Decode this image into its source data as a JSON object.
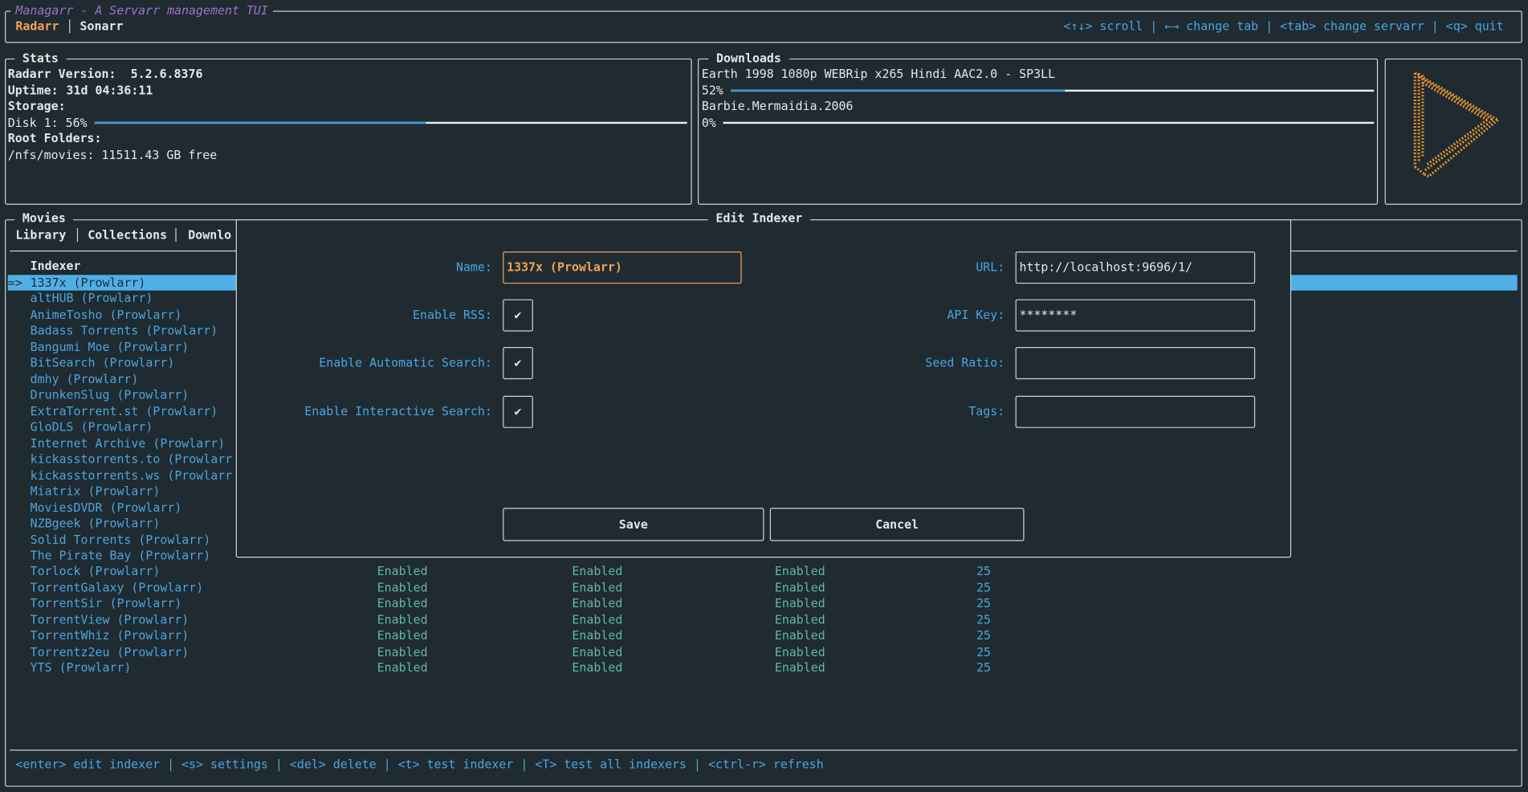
{
  "header": {
    "title": "Managarr - A Servarr management TUI",
    "tabs": [
      "Radarr",
      "Sonarr"
    ],
    "help": "<↑↓> scroll | ←→ change tab | <tab> change servarr | <q> quit"
  },
  "stats": {
    "title": "Stats",
    "version_label": "Radarr Version:",
    "version": "5.2.6.8376",
    "uptime_label": "Uptime:",
    "uptime": "31d 04:36:11",
    "storage_label": "Storage:",
    "disk_label": "Disk 1: 56%",
    "disk_progress": 56,
    "root_folders_label": "Root Folders:",
    "root_folder": "/nfs/movies: 11511.43 GB free"
  },
  "downloads": {
    "title": "Downloads",
    "items": [
      {
        "name": "Earth 1998 1080p WEBRip x265 Hindi AAC2.0 - SP3LL",
        "label": "52%",
        "progress": 52
      },
      {
        "name": "Barbie.Mermaidia.2006",
        "label": "0%",
        "progress": 0
      }
    ]
  },
  "movies": {
    "title": "Movies",
    "tabs": [
      "Library",
      "Collections",
      "Downlo"
    ],
    "column": "Indexer",
    "selector": "=>",
    "rows": [
      {
        "name": "1337x (Prowlarr)"
      },
      {
        "name": "altHUB (Prowlarr)"
      },
      {
        "name": "AnimeTosho (Prowlarr)"
      },
      {
        "name": "Badass Torrents (Prowlarr)"
      },
      {
        "name": "Bangumi Moe (Prowlarr)"
      },
      {
        "name": "BitSearch (Prowlarr)"
      },
      {
        "name": "dmhy (Prowlarr)"
      },
      {
        "name": "DrunkenSlug (Prowlarr)"
      },
      {
        "name": "ExtraTorrent.st (Prowlarr)"
      },
      {
        "name": "GloDLS (Prowlarr)"
      },
      {
        "name": "Internet Archive (Prowlarr)"
      },
      {
        "name": "kickasstorrents.to (Prowlarr"
      },
      {
        "name": "kickasstorrents.ws (Prowlarr"
      },
      {
        "name": "Miatrix (Prowlarr)"
      },
      {
        "name": "MoviesDVDR (Prowlarr)"
      },
      {
        "name": "NZBgeek (Prowlarr)"
      },
      {
        "name": "Solid Torrents (Prowlarr)"
      },
      {
        "name": "The Pirate Bay (Prowlarr)"
      },
      {
        "name": "Torlock (Prowlarr)",
        "rss": "Enabled",
        "automatic_search": "Enabled",
        "interactive_search": "Enabled",
        "priority": "25"
      },
      {
        "name": "TorrentGalaxy (Prowlarr)",
        "rss": "Enabled",
        "automatic_search": "Enabled",
        "interactive_search": "Enabled",
        "priority": "25"
      },
      {
        "name": "TorrentSir (Prowlarr)",
        "rss": "Enabled",
        "automatic_search": "Enabled",
        "interactive_search": "Enabled",
        "priority": "25"
      },
      {
        "name": "TorrentView (Prowlarr)",
        "rss": "Enabled",
        "automatic_search": "Enabled",
        "interactive_search": "Enabled",
        "priority": "25"
      },
      {
        "name": "TorrentWhiz (Prowlarr)",
        "rss": "Enabled",
        "automatic_search": "Enabled",
        "interactive_search": "Enabled",
        "priority": "25"
      },
      {
        "name": "Torrentz2eu (Prowlarr)",
        "rss": "Enabled",
        "automatic_search": "Enabled",
        "interactive_search": "Enabled",
        "priority": "25"
      },
      {
        "name": "YTS (Prowlarr)",
        "rss": "Enabled",
        "automatic_search": "Enabled",
        "interactive_search": "Enabled",
        "priority": "25"
      }
    ]
  },
  "modal": {
    "title": "Edit Indexer",
    "left": [
      {
        "label": "Name:",
        "value": "1337x (Prowlarr)"
      },
      {
        "label": "Enable RSS:",
        "value": "✔"
      },
      {
        "label": "Enable Automatic Search:",
        "value": "✔"
      },
      {
        "label": "Enable Interactive Search:",
        "value": "✔"
      }
    ],
    "right": [
      {
        "label": "URL:",
        "value": "http://localhost:9696/1/"
      },
      {
        "label": "API Key:",
        "value": "********"
      },
      {
        "label": "Seed Ratio:"
      },
      {
        "label": "Tags:"
      }
    ],
    "buttons": [
      "Save",
      "Cancel"
    ]
  },
  "footer": {
    "help": "<enter> edit indexer | <s> settings | <del> delete | <t> test indexer | <T> test all indexers | <ctrl-r> refresh"
  }
}
